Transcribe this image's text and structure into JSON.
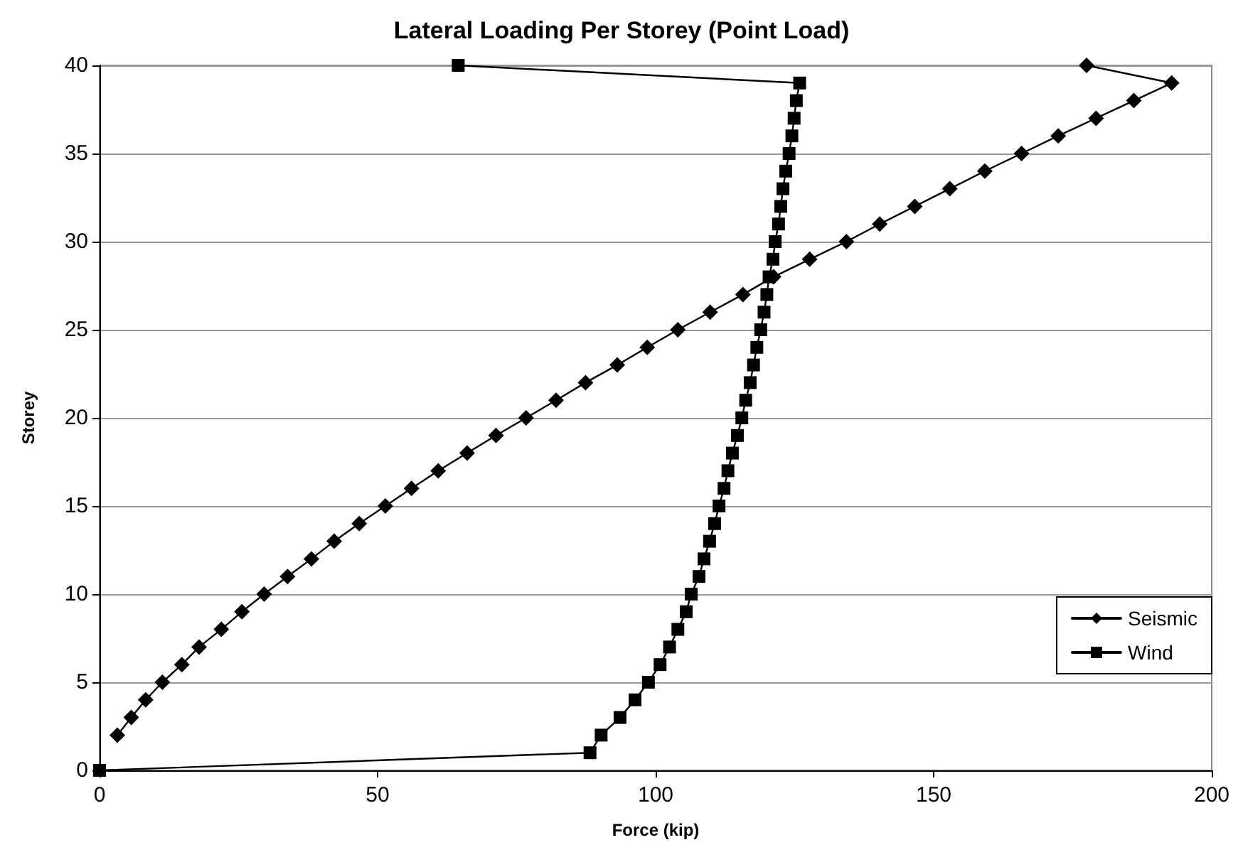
{
  "chart_data": {
    "type": "line",
    "title": "Lateral Loading Per Storey (Point Load)",
    "xlabel": "Force (kip)",
    "ylabel": "Storey",
    "xlim": [
      0,
      200
    ],
    "xticks": [
      0,
      50,
      100,
      150,
      200
    ],
    "ylim": [
      0,
      40
    ],
    "yticks": [
      0,
      5,
      10,
      15,
      20,
      25,
      30,
      35,
      40
    ],
    "grid": "y",
    "legend": "right",
    "line_style": "solid",
    "series": [
      {
        "name": "Seismic",
        "color": "#000000",
        "marker": "diamond",
        "x": [
          3.2,
          5.7,
          8.3,
          11.3,
          14.8,
          17.9,
          21.9,
          25.6,
          29.6,
          33.8,
          38.1,
          42.2,
          46.7,
          51.4,
          56.1,
          60.9,
          66.1,
          71.3,
          76.7,
          82.1,
          87.4,
          93.1,
          98.5,
          104,
          109.8,
          115.7,
          121.2,
          127.7,
          134.3,
          140.3,
          146.6,
          152.9,
          159.2,
          165.8,
          172.4,
          179.2,
          186,
          192.8,
          177.5
        ],
        "values": [
          2,
          3,
          4,
          5,
          6,
          7,
          8,
          9,
          10,
          11,
          12,
          13,
          14,
          15,
          16,
          17,
          18,
          19,
          20,
          21,
          22,
          23,
          24,
          25,
          26,
          27,
          28,
          29,
          30,
          31,
          32,
          33,
          34,
          35,
          36,
          37,
          38,
          39,
          40
        ]
      },
      {
        "name": "Wind",
        "color": "#000000",
        "marker": "square",
        "x": [
          0,
          88.2,
          90.2,
          93.6,
          96.3,
          98.7,
          100.8,
          102.5,
          104,
          105.5,
          106.4,
          107.8,
          108.7,
          109.7,
          110.6,
          111.4,
          112.3,
          113,
          113.8,
          114.7,
          115.5,
          116.2,
          117,
          117.6,
          118.2,
          118.9,
          119.5,
          120,
          120.4,
          121.1,
          121.5,
          122.1,
          122.5,
          122.9,
          123.4,
          124,
          124.5,
          124.9,
          125.3,
          125.9,
          64.5
        ],
        "values": [
          0,
          1,
          2,
          3,
          4,
          5,
          6,
          7,
          8,
          9,
          10,
          11,
          12,
          13,
          14,
          15,
          16,
          17,
          18,
          19,
          20,
          21,
          22,
          23,
          24,
          25,
          26,
          27,
          28,
          29,
          30,
          31,
          32,
          33,
          34,
          35,
          36,
          37,
          38,
          39,
          40
        ]
      }
    ]
  }
}
